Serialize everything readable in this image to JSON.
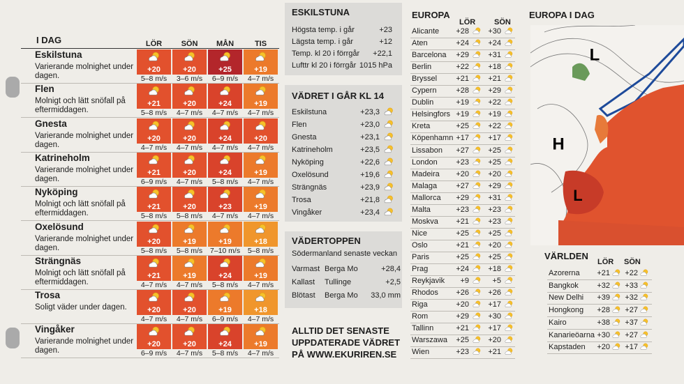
{
  "today": {
    "title": "I DAG",
    "days": [
      "LÖR",
      "SÖN",
      "MÅN",
      "TIS"
    ],
    "towns": [
      {
        "name": "Eskilstuna",
        "desc": "Varierande molnighet under dagen.",
        "temps": [
          "+20",
          "+20",
          "+25",
          "+19"
        ],
        "winds": [
          "5–8 m/s",
          "3–6 m/s",
          "6–9 m/s",
          "4–7 m/s"
        ],
        "colors": [
          "#e2512d",
          "#e2512d",
          "#b3262b",
          "#ec7a2b"
        ]
      },
      {
        "name": "Flen",
        "desc": "Molnigt och lätt snöfall på eftermiddagen.",
        "temps": [
          "+21",
          "+20",
          "+24",
          "+19"
        ],
        "winds": [
          "5–8 m/s",
          "4–7 m/s",
          "4–7 m/s",
          "4–7 m/s"
        ],
        "colors": [
          "#e2512d",
          "#e2512d",
          "#d9432b",
          "#ec7a2b"
        ]
      },
      {
        "name": "Gnesta",
        "desc": "Varierande molnighet under dagen.",
        "temps": [
          "+20",
          "+20",
          "+24",
          "+20"
        ],
        "winds": [
          "4–7 m/s",
          "4–7 m/s",
          "4–7 m/s",
          "4–7 m/s"
        ],
        "colors": [
          "#e2512d",
          "#e2512d",
          "#d9432b",
          "#e2512d"
        ]
      },
      {
        "name": "Katrineholm",
        "desc": "Varierande molnighet under dagen.",
        "temps": [
          "+21",
          "+20",
          "+24",
          "+19"
        ],
        "winds": [
          "6–9 m/s",
          "4–7 m/s",
          "5–8 m/s",
          "4–7 m/s"
        ],
        "colors": [
          "#e2512d",
          "#e2512d",
          "#d9432b",
          "#ec7a2b"
        ]
      },
      {
        "name": "Nyköping",
        "desc": "Molnigt och lätt snöfall på eftermiddagen.",
        "temps": [
          "+21",
          "+20",
          "+23",
          "+19"
        ],
        "winds": [
          "5–8 m/s",
          "5–8 m/s",
          "4–7 m/s",
          "4–7 m/s"
        ],
        "colors": [
          "#e2512d",
          "#e2512d",
          "#d9432b",
          "#ec7a2b"
        ]
      },
      {
        "name": "Oxelösund",
        "desc": "Varierande molnighet under dagen.",
        "temps": [
          "+20",
          "+19",
          "+19",
          "+18"
        ],
        "winds": [
          "5–8 m/s",
          "5–8 m/s",
          "7–10 m/s",
          "5–8 m/s"
        ],
        "colors": [
          "#e2512d",
          "#ec7a2b",
          "#ec7a2b",
          "#f0962c"
        ]
      },
      {
        "name": "Strängnäs",
        "desc": "Molnigt och lätt snöfall på eftermiddagen.",
        "temps": [
          "+21",
          "+19",
          "+24",
          "+19"
        ],
        "winds": [
          "4–7 m/s",
          "4–7 m/s",
          "5–8 m/s",
          "4–7 m/s"
        ],
        "colors": [
          "#e2512d",
          "#ec7a2b",
          "#d9432b",
          "#ec7a2b"
        ]
      },
      {
        "name": "Trosa",
        "desc": "Soligt väder under dagen.",
        "temps": [
          "+20",
          "+20",
          "+19",
          "+18"
        ],
        "winds": [
          "4–7 m/s",
          "4–7 m/s",
          "6–9 m/s",
          "4–7 m/s"
        ],
        "colors": [
          "#e2512d",
          "#e2512d",
          "#ec7a2b",
          "#f0962c"
        ]
      },
      {
        "name": "Vingåker",
        "desc": "Varierande molnighet under dagen.",
        "temps": [
          "+20",
          "+20",
          "+24",
          "+19"
        ],
        "winds": [
          "6–9 m/s",
          "4–7 m/s",
          "5–8 m/s",
          "4–7 m/s"
        ],
        "colors": [
          "#e2512d",
          "#e2512d",
          "#d9432b",
          "#ec7a2b"
        ]
      }
    ]
  },
  "local": {
    "title": "ESKILSTUNA",
    "rows": [
      [
        "Högsta temp. i går",
        "+23"
      ],
      [
        "Lägsta temp. i går",
        "+12"
      ],
      [
        "Temp. kl 20 i förrgår",
        "+22,1"
      ],
      [
        "Lufttr kl 20 i förrgår",
        "1015 hPa"
      ]
    ]
  },
  "yesterday": {
    "title": "VÄDRET I GÅR KL 14",
    "rows": [
      [
        "Eskilstuna",
        "+23,3"
      ],
      [
        "Flen",
        "+23,0"
      ],
      [
        "Gnesta",
        "+23,1"
      ],
      [
        "Katrineholm",
        "+23,5"
      ],
      [
        "Nyköping",
        "+22,6"
      ],
      [
        "Oxelösund",
        "+19,6"
      ],
      [
        "Strängnäs",
        "+23,9"
      ],
      [
        "Trosa",
        "+21,8"
      ],
      [
        "Vingåker",
        "+23,4"
      ]
    ]
  },
  "top": {
    "title": "VÄDERTOPPEN",
    "subtitle": "Södermanland senaste veckan",
    "rows": [
      [
        "Varmast",
        "Berga Mo",
        "+28,4"
      ],
      [
        "Kallast",
        "Tullinge",
        "+2,5"
      ],
      [
        "Blötast",
        "Berga Mo",
        "33,0 mm"
      ]
    ]
  },
  "promo": [
    "ALLTID DET SENASTE",
    "UPPDATERADE VÄDRET",
    "PÅ WWW.EKURIREN.SE"
  ],
  "europe": {
    "title": "EUROPA",
    "days": [
      "LÖR",
      "SÖN"
    ],
    "rows": [
      [
        "Alicante",
        "+28",
        "+30"
      ],
      [
        "Aten",
        "+24",
        "+24"
      ],
      [
        "Barcelona",
        "+29",
        "+31"
      ],
      [
        "Berlin",
        "+22",
        "+18"
      ],
      [
        "Bryssel",
        "+21",
        "+21"
      ],
      [
        "Cypern",
        "+28",
        "+29"
      ],
      [
        "Dublin",
        "+19",
        "+22"
      ],
      [
        "Helsingfors",
        "+19",
        "+19"
      ],
      [
        "Kreta",
        "+25",
        "+22"
      ],
      [
        "Köpenhamn",
        "+17",
        "+17"
      ],
      [
        "Lissabon",
        "+27",
        "+25"
      ],
      [
        "London",
        "+23",
        "+25"
      ],
      [
        "Madeira",
        "+20",
        "+20"
      ],
      [
        "Malaga",
        "+27",
        "+29"
      ],
      [
        "Mallorca",
        "+29",
        "+31"
      ],
      [
        "Malta",
        "+23",
        "+23"
      ],
      [
        "Moskva",
        "+21",
        "+23"
      ],
      [
        "Nice",
        "+25",
        "+25"
      ],
      [
        "Oslo",
        "+21",
        "+20"
      ],
      [
        "Paris",
        "+25",
        "+25"
      ],
      [
        "Prag",
        "+24",
        "+18"
      ],
      [
        "Reykjavik",
        "+9",
        "+5"
      ],
      [
        "Rhodos",
        "+26",
        "+26"
      ],
      [
        "Riga",
        "+20",
        "+17"
      ],
      [
        "Rom",
        "+29",
        "+30"
      ],
      [
        "Tallinn",
        "+21",
        "+17"
      ],
      [
        "Warszawa",
        "+25",
        "+20"
      ],
      [
        "Wien",
        "+23",
        "+21"
      ]
    ]
  },
  "map": {
    "title": "EUROPA I DAG",
    "labels": [
      "L",
      "H",
      "L"
    ]
  },
  "world": {
    "title": "VÄRLDEN",
    "days": [
      "LÖR",
      "SÖN"
    ],
    "rows": [
      [
        "Azorerna",
        "+21",
        "+22"
      ],
      [
        "Bangkok",
        "+32",
        "+33"
      ],
      [
        "New Delhi",
        "+39",
        "+32"
      ],
      [
        "Hongkong",
        "+28",
        "+27"
      ],
      [
        "Kairo",
        "+38",
        "+37"
      ],
      [
        "Kanarieöarna",
        "+30",
        "+27"
      ],
      [
        "Kapstaden",
        "+20",
        "+17"
      ]
    ]
  }
}
